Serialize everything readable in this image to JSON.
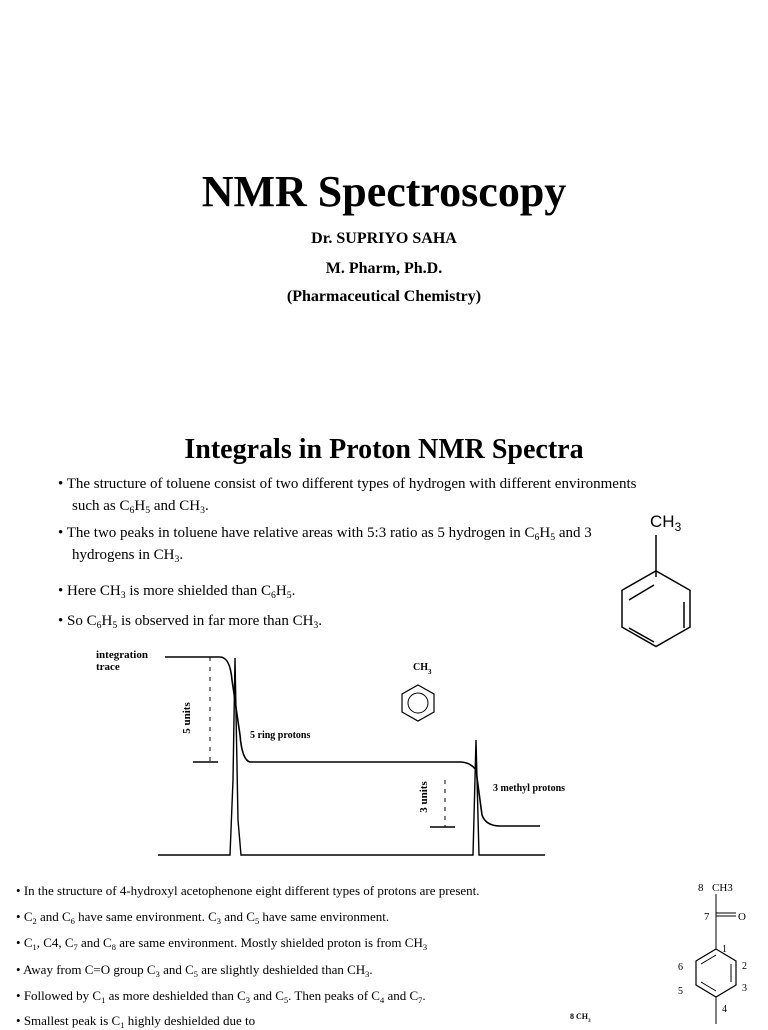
{
  "title": "NMR Spectroscopy",
  "author_lines": [
    "Dr. SUPRIYO SAHA",
    "M. Pharm, Ph.D.",
    "(Pharmaceutical Chemistry)"
  ],
  "section_heading": "Integrals in Proton NMR Spectra",
  "bullets": [
    [
      "The structure of toluene consist of two different types of hydrogen with different environments such as C",
      "6",
      "H",
      "5",
      " and CH",
      "3",
      "."
    ],
    [
      " The two peaks in toluene have relative areas with 5:3 ratio as 5 hydrogen in C",
      "6",
      "H",
      "5",
      " and 3 hydrogens in CH",
      "3",
      "."
    ],
    [
      "Here CH",
      "3",
      " is more shielded than C",
      "6",
      "H",
      "5",
      "."
    ],
    [
      "So C",
      "6",
      "H",
      "5",
      " is observed in far more than CH",
      "3",
      "."
    ]
  ],
  "structure_label": [
    "CH",
    "3"
  ],
  "figure": {
    "trace_label": "integration trace",
    "ring_units": "5 units",
    "ring_label": "5 ring protons",
    "methyl_units": "3 units",
    "methyl_label": "3 methyl protons",
    "structure_label": [
      "CH",
      "3"
    ]
  },
  "bullets_2": [
    [
      "In the structure of 4-hydroxyl acetophenone eight different types of protons are present."
    ],
    [
      "C",
      "2",
      " and C",
      "6",
      " have same environment. C",
      "3",
      " and C",
      "5",
      " have same environment."
    ],
    [
      "C",
      "1",
      ", C4, C",
      "7",
      " and C",
      "8",
      " are same environment. Mostly shielded proton is from CH",
      "3"
    ],
    [
      "Away from C=O group C",
      "3",
      " and C",
      "5",
      " are slightly deshielded than CH",
      "3",
      "."
    ],
    [
      "Followed by C",
      "1",
      " as more deshielded than C",
      "3",
      " and C",
      "5",
      ". Then peaks of C",
      "4",
      " and C",
      "7",
      "."
    ],
    [
      " Smallest peak is C",
      "1",
      " highly deshielded due to"
    ]
  ],
  "acetophenone": {
    "atoms": [
      "8",
      "7",
      "1",
      "2",
      "3",
      "4",
      "5",
      "6"
    ],
    "methyl": "CH3",
    "oxygen": "O"
  },
  "partial_label": [
    "8 CH",
    "3"
  ]
}
